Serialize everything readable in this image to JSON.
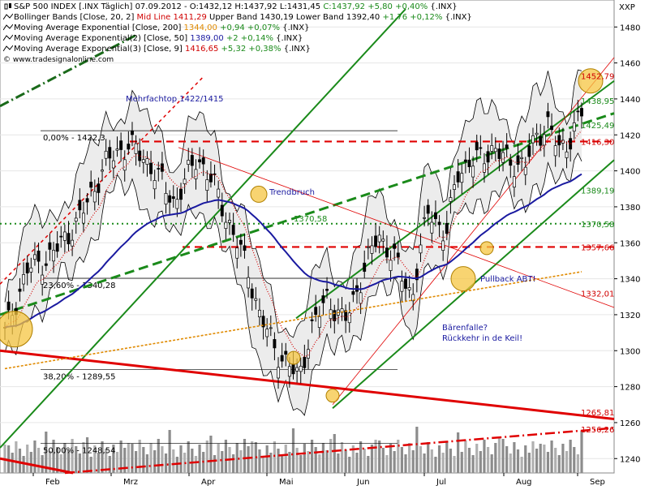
{
  "chart_data": {
    "type": "candlestick",
    "symbol": "S&P 500 INDEX [.INX",
    "period": "Täglich",
    "quote": {
      "date": "07.09.2012",
      "open": "O:1432,12",
      "high": "H:1437,92",
      "low": "L:1431,45",
      "close": "C:1437,92",
      "change": "+5,80",
      "change_pct": "+0,40%",
      "suffix": "{.INX}"
    },
    "axis_label": "XXP",
    "y_ticks": [
      1240,
      1260,
      1280,
      1300,
      1320,
      1340,
      1360,
      1380,
      1400,
      1420,
      1440,
      1460,
      1480
    ],
    "y_tick_labels": [
      "1240",
      "1260",
      "1280",
      "1300",
      "1320",
      "1340",
      "1360",
      "1380",
      "1400",
      "1420",
      "1440",
      "1460",
      "1480"
    ],
    "ylim": [
      1232,
      1495
    ],
    "x_labels": [
      "Feb",
      "Mrz",
      "Apr",
      "Mai",
      "Jun",
      "Jul",
      "Aug",
      "Sep"
    ],
    "indicators": [
      {
        "name": "Bollinger Bands [Close, 20, 2]",
        "mid": "Mid Line 1411,29",
        "upper": "Upper Band 1430,19",
        "lower": "Lower Band 1392,40",
        "chg": "+1,76 +0,12%",
        "suffix": "{.INX}",
        "color": "#000000"
      },
      {
        "name": "Moving Average Exponential [Close, 200]",
        "value": "1344,00",
        "chg": "+0,94 +0,07%",
        "suffix": "{.INX}",
        "color": "#e08a00"
      },
      {
        "name": "Moving Average Exponential(2) [Close, 50]",
        "value": "1389,00",
        "chg": "+2 +0,14%",
        "suffix": "{.INX}",
        "color": "#1a1aa0"
      },
      {
        "name": "Moving Average Exponential(3) [Close, 9]",
        "value": "1416,65",
        "chg": "+5,32 +0,38%",
        "suffix": "{.INX}",
        "color": "#d00000"
      }
    ],
    "watermark": "© www.tradesignalonline.com",
    "fib_levels": [
      {
        "label": "0,00% - 1422,3",
        "value": 1422.3
      },
      {
        "label": "23,60% - 1340,28",
        "value": 1340.28
      },
      {
        "label": "38,20% - 1289,55",
        "value": 1289.55
      },
      {
        "label": "50,00% - 1248,54",
        "value": 1248.54
      }
    ],
    "price_labels": [
      {
        "text": "1452,79",
        "value": 1452.79,
        "color": "#d00000"
      },
      {
        "text": "1438,95",
        "value": 1438.95,
        "color": "#1a8a1a"
      },
      {
        "text": "1425,49",
        "value": 1425.49,
        "color": "#1a8a1a"
      },
      {
        "text": "1416,30",
        "value": 1416.3,
        "color": "#d00000"
      },
      {
        "text": "1389,19",
        "value": 1389.19,
        "color": "#1a8a1a"
      },
      {
        "text": "1370,58",
        "value": 1370.58,
        "color": "#1a8a1a"
      },
      {
        "text": "1357,66",
        "value": 1357.66,
        "color": "#d00000"
      },
      {
        "text": "1332,01",
        "value": 1332.01,
        "color": "#d00000"
      },
      {
        "text": "1265,81",
        "value": 1265.81,
        "color": "#d00000"
      },
      {
        "text": "1256,26",
        "value": 1256.26,
        "color": "#d00000"
      }
    ],
    "annotations": {
      "top": "Mehrfachtop 1422/1415",
      "trend": "Trendbruch",
      "pullback": "Pullback ABT!",
      "bear1": "Bärenfalle?",
      "bear2": "Rückkehr in de Keil!"
    }
  }
}
